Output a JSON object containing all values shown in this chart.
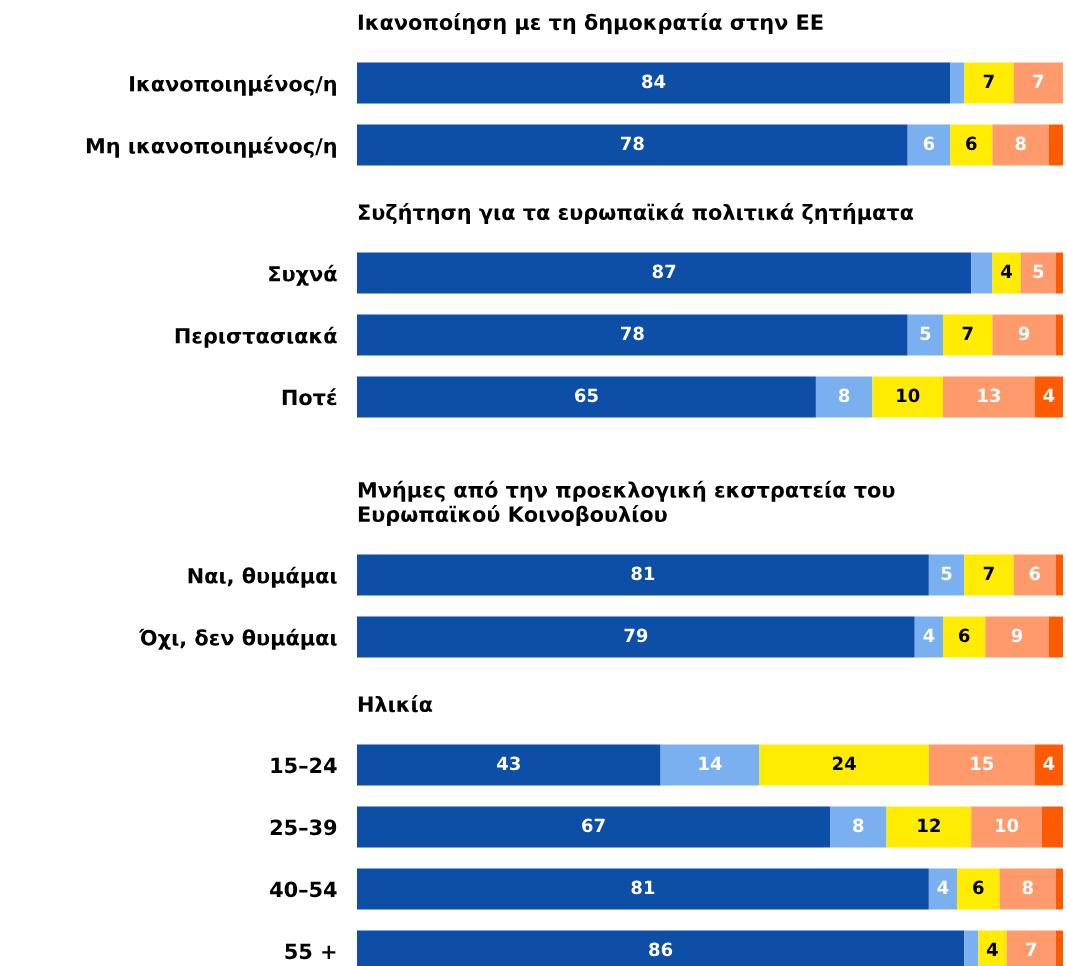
{
  "chart_data": [
    {
      "type": "bar",
      "orientation": "horizontal",
      "stacked": true,
      "title": "Ικανοποίηση με τη δημοκρατία στην ΕΕ",
      "categories": [
        "Ικανοποιημένος/η",
        "Μη ικανοποιημένος/η"
      ],
      "xlim": [
        0,
        100
      ],
      "tick_labels": "y",
      "series": [
        {
          "color": "#0d4ea6",
          "values": [
            84,
            78
          ],
          "value_labels": [
            "84",
            "78"
          ]
        },
        {
          "color": "#7ab0f0",
          "values": [
            2,
            6
          ],
          "value_labels": [
            null,
            "6"
          ]
        },
        {
          "color": "#ffec00",
          "values": [
            7,
            6
          ],
          "value_labels": [
            "7",
            "6"
          ]
        },
        {
          "color": "#ff9a6c",
          "values": [
            7,
            8
          ],
          "value_labels": [
            "7",
            "8"
          ]
        },
        {
          "color": "#ff5a00",
          "values": [
            0,
            2
          ],
          "value_labels": [
            null,
            null
          ]
        }
      ]
    },
    {
      "type": "bar",
      "orientation": "horizontal",
      "stacked": true,
      "title": "Συζήτηση για τα ευρωπαϊκά πολιτικά ζητήματα",
      "categories": [
        "Συχνά",
        "Περιστασιακά",
        "Ποτέ"
      ],
      "xlim": [
        0,
        100
      ],
      "tick_labels": "y",
      "series": [
        {
          "color": "#0d4ea6",
          "values": [
            87,
            78,
            65
          ],
          "value_labels": [
            "87",
            "78",
            "65"
          ]
        },
        {
          "color": "#7ab0f0",
          "values": [
            3,
            5,
            8
          ],
          "value_labels": [
            null,
            "5",
            "8"
          ]
        },
        {
          "color": "#ffec00",
          "values": [
            4,
            7,
            10
          ],
          "value_labels": [
            "4",
            "7",
            "10"
          ]
        },
        {
          "color": "#ff9a6c",
          "values": [
            5,
            9,
            13
          ],
          "value_labels": [
            "5",
            "9",
            "13"
          ]
        },
        {
          "color": "#ff5a00",
          "values": [
            1,
            1,
            4
          ],
          "value_labels": [
            null,
            null,
            "4"
          ]
        }
      ]
    },
    {
      "type": "bar",
      "orientation": "horizontal",
      "stacked": true,
      "title": "Μνήμες από την προεκλογική εκστρατεία του\nΕυρωπαϊκού Κοινοβουλίου",
      "categories": [
        "Ναι, θυμάμαι",
        "Όχι, δεν θυμάμαι"
      ],
      "xlim": [
        0,
        100
      ],
      "tick_labels": "y",
      "series": [
        {
          "color": "#0d4ea6",
          "values": [
            81,
            79
          ],
          "value_labels": [
            "81",
            "79"
          ]
        },
        {
          "color": "#7ab0f0",
          "values": [
            5,
            4
          ],
          "value_labels": [
            "5",
            "4"
          ]
        },
        {
          "color": "#ffec00",
          "values": [
            7,
            6
          ],
          "value_labels": [
            "7",
            "6"
          ]
        },
        {
          "color": "#ff9a6c",
          "values": [
            6,
            9
          ],
          "value_labels": [
            "6",
            "9"
          ]
        },
        {
          "color": "#ff5a00",
          "values": [
            1,
            2
          ],
          "value_labels": [
            null,
            null
          ]
        }
      ]
    },
    {
      "type": "bar",
      "orientation": "horizontal",
      "stacked": true,
      "title": "Ηλικία",
      "categories": [
        "15–24",
        "25–39",
        "40–54",
        "55 +"
      ],
      "xlim": [
        0,
        100
      ],
      "tick_labels": "y",
      "series": [
        {
          "color": "#0d4ea6",
          "values": [
            43,
            67,
            81,
            86
          ],
          "value_labels": [
            "43",
            "67",
            "81",
            "86"
          ]
        },
        {
          "color": "#7ab0f0",
          "values": [
            14,
            8,
            4,
            2
          ],
          "value_labels": [
            "14",
            "8",
            "4",
            null
          ]
        },
        {
          "color": "#ffec00",
          "values": [
            24,
            12,
            6,
            4
          ],
          "value_labels": [
            "24",
            "12",
            "6",
            "4"
          ]
        },
        {
          "color": "#ff9a6c",
          "values": [
            15,
            10,
            8,
            7
          ],
          "value_labels": [
            "15",
            "10",
            "8",
            "7"
          ]
        },
        {
          "color": "#ff5a00",
          "values": [
            4,
            3,
            1,
            1
          ],
          "value_labels": [
            "4",
            null,
            null,
            null
          ]
        }
      ]
    }
  ]
}
